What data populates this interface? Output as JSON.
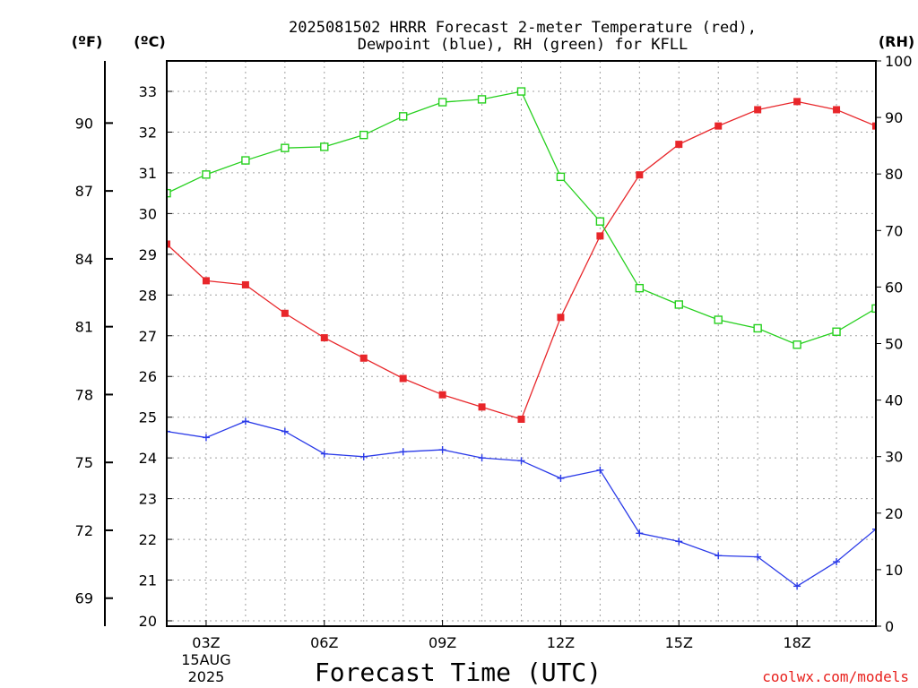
{
  "chart_data": {
    "type": "line",
    "title_line1": "2025081502 HRRR Forecast 2-meter Temperature (red),",
    "title_line2": "Dewpoint (blue), RH (green) for KFLL",
    "xlabel": "Forecast Time (UTC)",
    "credit": "coolwx.com/models",
    "unit_f": "(ºF)",
    "unit_c": "(ºC)",
    "unit_rh": "(RH)",
    "x_hours": [
      2,
      3,
      4,
      5,
      6,
      7,
      8,
      9,
      10,
      11,
      12,
      13,
      14,
      15,
      16,
      17,
      18,
      19,
      20
    ],
    "x_ticks": [
      {
        "hour": 3,
        "label": "03Z",
        "sub1": "15AUG",
        "sub2": "2025"
      },
      {
        "hour": 6,
        "label": "06Z"
      },
      {
        "hour": 9,
        "label": "09Z"
      },
      {
        "hour": 12,
        "label": "12Z"
      },
      {
        "hour": 15,
        "label": "15Z"
      },
      {
        "hour": 18,
        "label": "18Z"
      }
    ],
    "xlim": [
      2,
      20
    ],
    "ylim_c": [
      19.8,
      33.7
    ],
    "ylim_rh": [
      0,
      100
    ],
    "c_ticks": [
      20,
      21,
      22,
      23,
      24,
      25,
      26,
      27,
      28,
      29,
      30,
      31,
      32,
      33
    ],
    "f_ticks": [
      69,
      72,
      75,
      78,
      81,
      84,
      87,
      90
    ],
    "rh_ticks": [
      0,
      10,
      20,
      30,
      40,
      50,
      60,
      70,
      80,
      90,
      100
    ],
    "series": [
      {
        "name": "Temperature",
        "color": "#e8262a",
        "axis": "c",
        "marker": "filled-square",
        "values": [
          29.25,
          28.35,
          28.25,
          27.55,
          26.95,
          26.45,
          25.95,
          25.55,
          25.25,
          24.95,
          27.45,
          29.45,
          30.95,
          31.7,
          32.15,
          32.55,
          32.75,
          32.55,
          32.15
        ]
      },
      {
        "name": "Dewpoint",
        "color": "#2a3ae8",
        "axis": "c",
        "marker": "plus",
        "values": [
          24.65,
          24.5,
          24.9,
          24.65,
          24.1,
          24.03,
          24.15,
          24.2,
          24.0,
          23.93,
          23.5,
          23.7,
          22.15,
          21.95,
          21.6,
          21.57,
          20.85,
          21.45,
          22.25
        ]
      },
      {
        "name": "RH",
        "color": "#26d01e",
        "axis": "rh",
        "marker": "open-square",
        "values": [
          76.6,
          79.9,
          82.4,
          84.6,
          84.8,
          86.9,
          90.2,
          92.7,
          93.2,
          94.6,
          79.5,
          71.6,
          59.8,
          56.9,
          54.2,
          52.7,
          49.8,
          52.1,
          56.2
        ]
      }
    ]
  }
}
